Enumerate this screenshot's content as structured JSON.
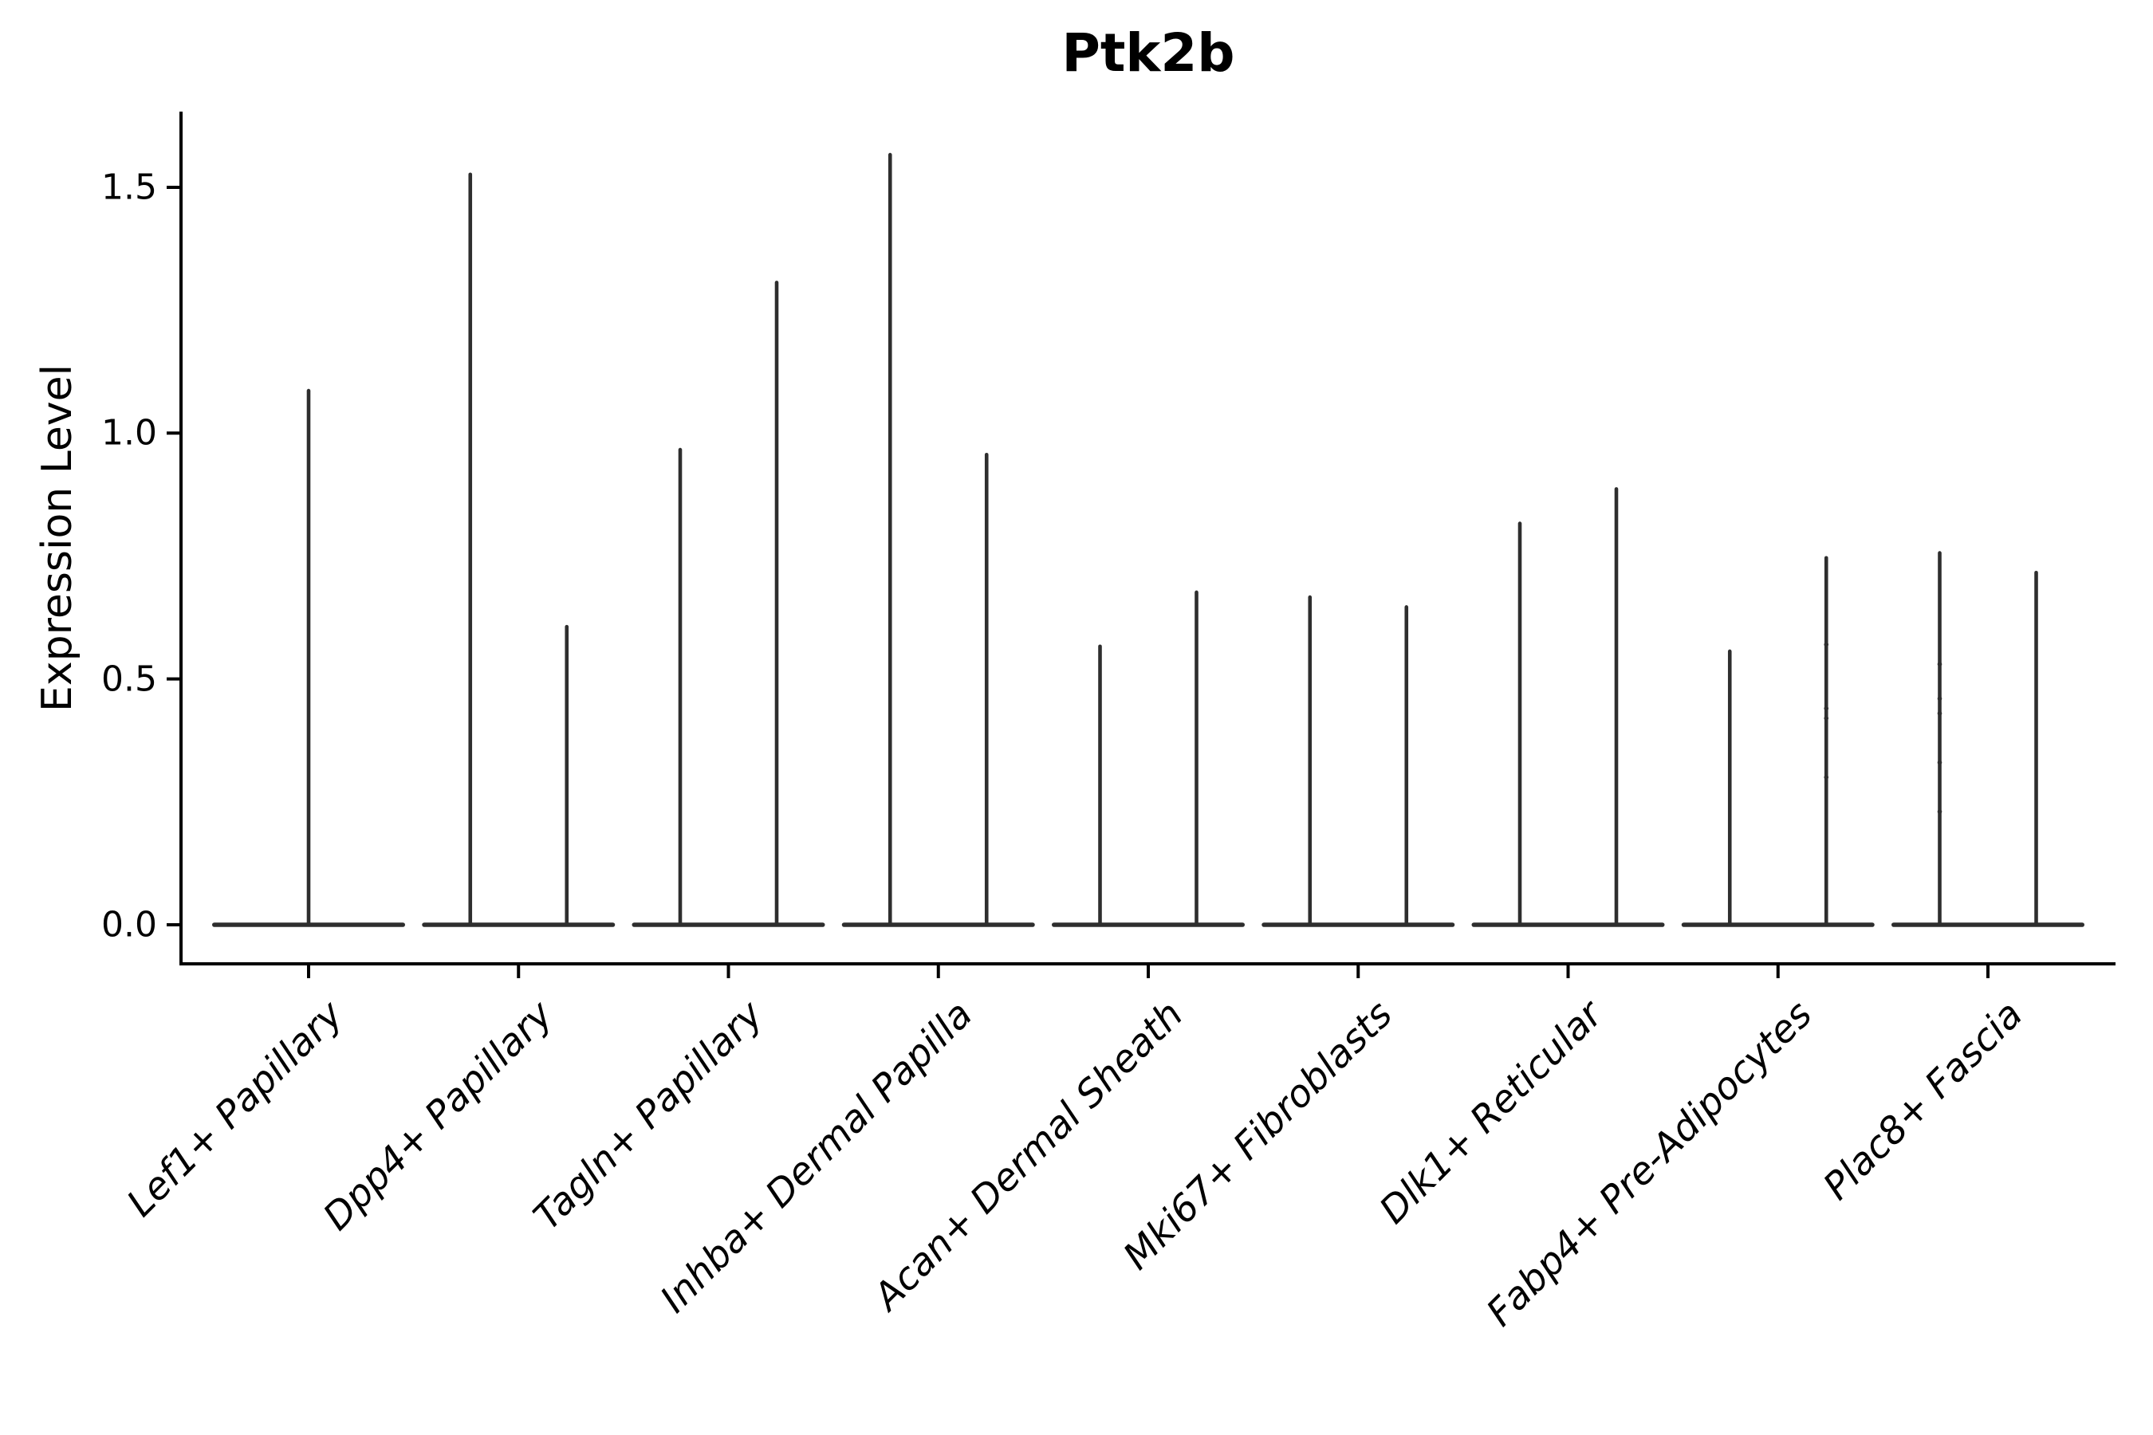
{
  "title": "Ptk2b",
  "y_axis": {
    "label": "Expression Level",
    "ticks": [
      "0.0",
      "0.5",
      "1.0",
      "1.5"
    ]
  },
  "colors": {
    "violin": "#2e2e2e",
    "axis": "#000000",
    "background": "#ffffff"
  },
  "chart_data": {
    "type": "violin",
    "title": "Ptk2b",
    "xlabel": "",
    "ylabel": "Expression Level",
    "ylim": [
      -0.08,
      1.65
    ],
    "ytick_values": [
      0.0,
      0.5,
      1.0,
      1.5
    ],
    "grid": false,
    "legend": "none",
    "categories": [
      "Lef1+ Papillary",
      "Dpp4+ Papillary",
      "Tagln+ Papillary",
      "Inhba+ Dermal Papilla",
      "Acan+ Dermal Sheath",
      "Mki67+ Fibroblasts",
      "Dlk1+ Reticular",
      "Fabp4+ Pre-Adipocytes",
      "Plac8+ Fascia"
    ],
    "note": "Each violin is a needle: dense mass at expression 0 (wide flat base) with a thin tail up to the max value.",
    "groups": [
      {
        "category": "Lef1+ Papillary",
        "violins": [
          {
            "max": 1.09,
            "dots": []
          }
        ]
      },
      {
        "category": "Dpp4+ Papillary",
        "violins": [
          {
            "max": 1.53,
            "dots": []
          },
          {
            "max": 0.61,
            "dots": []
          }
        ]
      },
      {
        "category": "Tagln+ Papillary",
        "violins": [
          {
            "max": 0.97,
            "dots": []
          },
          {
            "max": 1.31,
            "dots": []
          }
        ]
      },
      {
        "category": "Inhba+ Dermal Papilla",
        "violins": [
          {
            "max": 1.57,
            "dots": []
          },
          {
            "max": 0.96,
            "dots": []
          }
        ]
      },
      {
        "category": "Acan+ Dermal Sheath",
        "violins": [
          {
            "max": 0.57,
            "dots": []
          },
          {
            "max": 0.68,
            "dots": []
          }
        ]
      },
      {
        "category": "Mki67+ Fibroblasts",
        "violins": [
          {
            "max": 0.67,
            "dots": []
          },
          {
            "max": 0.65,
            "dots": []
          }
        ]
      },
      {
        "category": "Dlk1+ Reticular",
        "violins": [
          {
            "max": 0.82,
            "dots": []
          },
          {
            "max": 0.89,
            "dots": []
          }
        ]
      },
      {
        "category": "Fabp4+ Pre-Adipocytes",
        "violins": [
          {
            "max": 0.56,
            "dots": []
          },
          {
            "max": 0.75,
            "dots": [
              0.57,
              0.44,
              0.42,
              0.3
            ]
          }
        ]
      },
      {
        "category": "Plac8+ Fascia",
        "violins": [
          {
            "max": 0.76,
            "dots": [
              0.53,
              0.46,
              0.43,
              0.33,
              0.23
            ]
          },
          {
            "max": 0.72,
            "dots": []
          }
        ]
      }
    ]
  }
}
